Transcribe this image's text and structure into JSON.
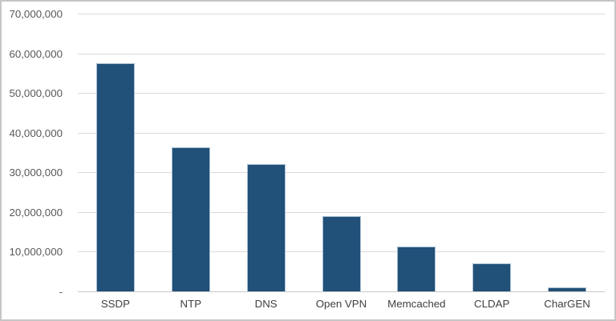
{
  "chart_data": {
    "type": "bar",
    "title": "",
    "xlabel": "",
    "ylabel": "",
    "categories": [
      "SSDP",
      "NTP",
      "DNS",
      "Open VPN",
      "Memcached",
      "CLDAP",
      "CharGEN"
    ],
    "values": [
      57500000,
      36300000,
      32000000,
      19000000,
      11200000,
      7000000,
      1000000
    ],
    "ylim": [
      0,
      70000000
    ],
    "ytick_step": 10000000,
    "yticks": [
      {
        "value": 70000000,
        "label": "70,000,000"
      },
      {
        "value": 60000000,
        "label": "60,000,000"
      },
      {
        "value": 50000000,
        "label": "50,000,000"
      },
      {
        "value": 40000000,
        "label": "40,000,000"
      },
      {
        "value": 30000000,
        "label": "30,000,000"
      },
      {
        "value": 20000000,
        "label": "20,000,000"
      },
      {
        "value": 10000000,
        "label": "10,000,000"
      },
      {
        "value": 0,
        "label": "-"
      }
    ],
    "grid": "horizontal",
    "legend": "none",
    "colors": {
      "bar_fill": "#215078",
      "bar_border": "#a8bfd3",
      "gridline": "#dadada",
      "axis_line": "#c9c9c9",
      "ytick_text": "#595959",
      "xtick_text": "#404040",
      "background": "#ffffff",
      "frame_border": "#c6c6c6"
    }
  }
}
